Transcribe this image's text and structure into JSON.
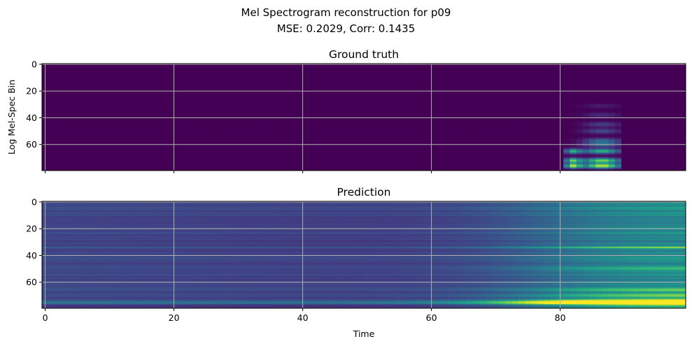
{
  "figure": {
    "suptitle_line1": "Mel Spectrogram reconstruction for p09",
    "suptitle_line2": "MSE: 0.2029, Corr: 0.1435"
  },
  "chart_data": [
    {
      "type": "heatmap",
      "title": "Ground truth",
      "xlabel": "",
      "ylabel": "Log Mel-Spec Bin",
      "colormap": "viridis",
      "x_range": [
        0,
        99
      ],
      "y_range": [
        0,
        79
      ],
      "y_inverted": true,
      "xticks": [
        0,
        20,
        40,
        60,
        80
      ],
      "yticks": [
        0,
        20,
        40,
        60
      ],
      "xtick_labels_visible": false,
      "grid": true,
      "background_value": 0.0,
      "active_region": {
        "time_start": 81,
        "time_end": 89,
        "bin_start": 30,
        "bin_end": 79,
        "peak_bins": [
          76,
          72,
          65,
          60,
          57,
          50,
          45,
          38,
          31
        ]
      }
    },
    {
      "type": "heatmap",
      "title": "Prediction",
      "xlabel": "Time",
      "ylabel": "",
      "colormap": "viridis",
      "x_range": [
        0,
        99
      ],
      "y_range": [
        0,
        79
      ],
      "y_inverted": true,
      "xticks": [
        0,
        20,
        40,
        60,
        80
      ],
      "yticks": [
        0,
        20,
        40,
        60
      ],
      "xtick_labels_visible": true,
      "grid": true,
      "trend": "intensity rises with time after ~65, strongest near bins 70-78",
      "bright_bins": [
        74,
        75,
        76,
        66,
        70,
        34,
        50
      ]
    }
  ],
  "colors": {
    "viridis_low": "#440154",
    "viridis_high": "#fde725",
    "grid": "#b0b0b0"
  }
}
